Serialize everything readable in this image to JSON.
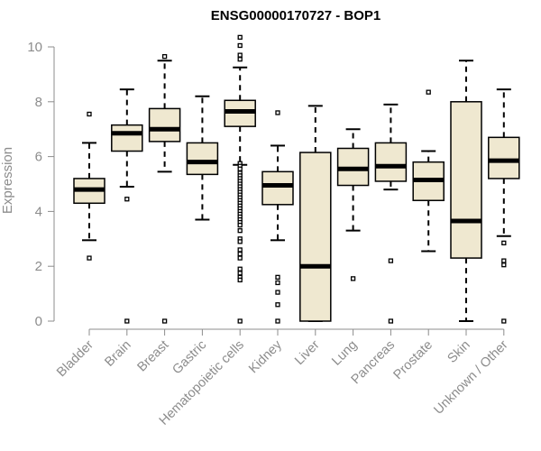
{
  "chart_data": {
    "type": "box",
    "title": "ENSG00000170727 - BOP1",
    "xlabel": "",
    "ylabel": "Expression",
    "ylim": [
      0,
      10
    ],
    "yticks": [
      0,
      2,
      4,
      6,
      8,
      10
    ],
    "box_fill": "#efe8d0",
    "colors": {
      "axis": "#8c8c8c",
      "box_line": "#000000",
      "median": "#000000"
    },
    "series": [
      {
        "name": "Bladder",
        "q1": 4.3,
        "median": 4.8,
        "q3": 5.2,
        "whisker_low": 2.95,
        "whisker_high": 6.5,
        "outliers": [
          7.55,
          2.3
        ]
      },
      {
        "name": "Brain",
        "q1": 6.2,
        "median": 6.85,
        "q3": 7.15,
        "whisker_low": 4.9,
        "whisker_high": 8.45,
        "outliers": [
          4.45,
          0.0
        ]
      },
      {
        "name": "Breast",
        "q1": 6.55,
        "median": 7.0,
        "q3": 7.75,
        "whisker_low": 5.45,
        "whisker_high": 9.5,
        "outliers": [
          9.65,
          0.0
        ]
      },
      {
        "name": "Gastric",
        "q1": 5.35,
        "median": 5.8,
        "q3": 6.5,
        "whisker_low": 3.7,
        "whisker_high": 8.2,
        "outliers": []
      },
      {
        "name": "Hematopoietic cells",
        "q1": 7.1,
        "median": 7.65,
        "q3": 8.05,
        "whisker_low": 5.7,
        "whisker_high": 9.25,
        "outliers": [
          10.35,
          10.05,
          9.7,
          9.55,
          5.75,
          5.65,
          5.55,
          5.4,
          5.3,
          5.2,
          5.1,
          5.0,
          4.9,
          4.8,
          4.7,
          4.6,
          4.5,
          4.4,
          4.3,
          4.2,
          4.1,
          4.0,
          3.9,
          3.8,
          3.7,
          3.6,
          3.5,
          3.3,
          3.0,
          2.9,
          2.6,
          2.45,
          2.3,
          1.9,
          1.75,
          1.6,
          1.5,
          0.0
        ]
      },
      {
        "name": "Kidney",
        "q1": 4.25,
        "median": 4.95,
        "q3": 5.45,
        "whisker_low": 2.95,
        "whisker_high": 6.4,
        "outliers": [
          7.6,
          1.6,
          1.4,
          1.05,
          0.6,
          0.0
        ]
      },
      {
        "name": "Liver",
        "q1": 0.0,
        "median": 2.0,
        "q3": 6.15,
        "whisker_low": 0.0,
        "whisker_high": 7.85,
        "outliers": []
      },
      {
        "name": "Lung",
        "q1": 4.95,
        "median": 5.55,
        "q3": 6.3,
        "whisker_low": 3.3,
        "whisker_high": 7.0,
        "outliers": [
          1.55
        ]
      },
      {
        "name": "Pancreas",
        "q1": 5.1,
        "median": 5.65,
        "q3": 6.5,
        "whisker_low": 4.8,
        "whisker_high": 7.9,
        "outliers": [
          2.2,
          0.0
        ]
      },
      {
        "name": "Prostate",
        "q1": 4.4,
        "median": 5.15,
        "q3": 5.8,
        "whisker_low": 2.55,
        "whisker_high": 6.2,
        "outliers": [
          8.35
        ]
      },
      {
        "name": "Skin",
        "q1": 2.3,
        "median": 3.65,
        "q3": 8.0,
        "whisker_low": 0.0,
        "whisker_high": 9.5,
        "outliers": []
      },
      {
        "name": "Unknown / Other",
        "q1": 5.2,
        "median": 5.85,
        "q3": 6.7,
        "whisker_low": 3.1,
        "whisker_high": 8.45,
        "outliers": [
          2.85,
          2.2,
          2.05,
          0.0
        ]
      }
    ]
  }
}
